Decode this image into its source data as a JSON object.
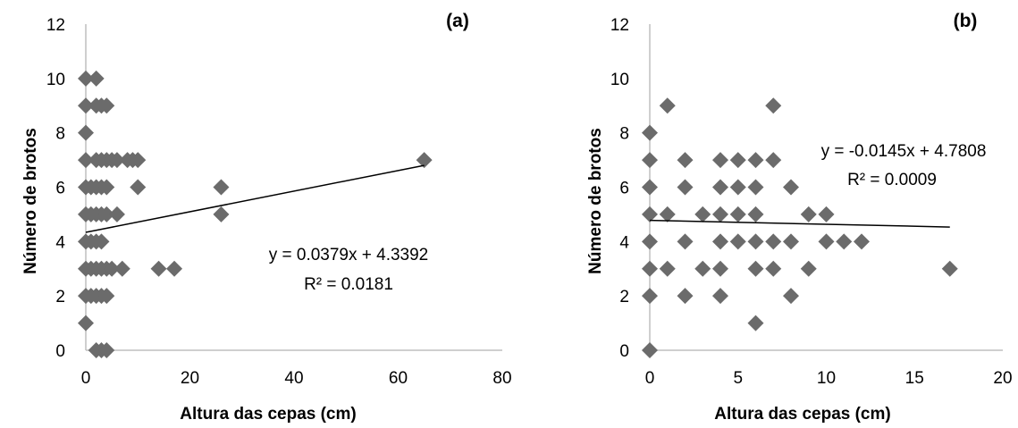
{
  "chart_data": [
    {
      "type": "scatter",
      "panel_label": "(a)",
      "xlabel": "Altura das cepas (cm)",
      "ylabel": "Número de brotos",
      "xlim": [
        0,
        80
      ],
      "ylim": [
        0,
        12
      ],
      "xticks": [
        0,
        20,
        40,
        60,
        80
      ],
      "yticks": [
        0,
        2,
        4,
        6,
        8,
        10,
        12
      ],
      "grid": false,
      "marker": "diamond",
      "marker_color": "#6b6b6b",
      "series": [
        {
          "points": [
            [
              0,
              10
            ],
            [
              0,
              9
            ],
            [
              0,
              8
            ],
            [
              0,
              7
            ],
            [
              0,
              6
            ],
            [
              0,
              5
            ],
            [
              0,
              4
            ],
            [
              0,
              3
            ],
            [
              0,
              2
            ],
            [
              0,
              1
            ],
            [
              2,
              10
            ],
            [
              2,
              9
            ],
            [
              2,
              7
            ],
            [
              2,
              6
            ],
            [
              2,
              5
            ],
            [
              2,
              4
            ],
            [
              2,
              3
            ],
            [
              2,
              2
            ],
            [
              2,
              0
            ],
            [
              1,
              6
            ],
            [
              1,
              5
            ],
            [
              1,
              4
            ],
            [
              1,
              3
            ],
            [
              1,
              2
            ],
            [
              3,
              9
            ],
            [
              3,
              7
            ],
            [
              3,
              6
            ],
            [
              3,
              5
            ],
            [
              3,
              4
            ],
            [
              3,
              3
            ],
            [
              3,
              2
            ],
            [
              3,
              0
            ],
            [
              4,
              9
            ],
            [
              4,
              7
            ],
            [
              4,
              6
            ],
            [
              4,
              5
            ],
            [
              4,
              3
            ],
            [
              4,
              2
            ],
            [
              4,
              0
            ],
            [
              5,
              7
            ],
            [
              5,
              3
            ],
            [
              6,
              7
            ],
            [
              6,
              5
            ],
            [
              7,
              3
            ],
            [
              8,
              7
            ],
            [
              9,
              7
            ],
            [
              10,
              7
            ],
            [
              10,
              6
            ],
            [
              14,
              3
            ],
            [
              17,
              3
            ],
            [
              26,
              6
            ],
            [
              26,
              5
            ],
            [
              65,
              7
            ]
          ]
        }
      ],
      "trendline": {
        "slope": 0.0379,
        "intercept": 4.3392,
        "x_range": [
          0,
          65
        ]
      },
      "equation_text": "y = 0.0379x + 4.3392",
      "r2_text": "R² = 0.0181"
    },
    {
      "type": "scatter",
      "panel_label": "(b)",
      "xlabel": "Altura das cepas (cm)",
      "ylabel": "Número de brotos",
      "xlim": [
        0,
        20
      ],
      "ylim": [
        0,
        12
      ],
      "xticks": [
        0,
        5,
        10,
        15,
        20
      ],
      "yticks": [
        0,
        2,
        4,
        6,
        8,
        10,
        12
      ],
      "grid": false,
      "marker": "diamond",
      "marker_color": "#6b6b6b",
      "series": [
        {
          "points": [
            [
              0,
              8
            ],
            [
              0,
              7
            ],
            [
              0,
              6
            ],
            [
              0,
              5
            ],
            [
              0,
              4
            ],
            [
              0,
              3
            ],
            [
              0,
              2
            ],
            [
              0,
              0
            ],
            [
              1,
              9
            ],
            [
              1,
              5
            ],
            [
              1,
              3
            ],
            [
              2,
              7
            ],
            [
              2,
              6
            ],
            [
              2,
              4
            ],
            [
              2,
              2
            ],
            [
              3,
              5
            ],
            [
              3,
              3
            ],
            [
              4,
              7
            ],
            [
              4,
              6
            ],
            [
              4,
              5
            ],
            [
              4,
              4
            ],
            [
              4,
              3
            ],
            [
              4,
              2
            ],
            [
              5,
              7
            ],
            [
              5,
              6
            ],
            [
              5,
              5
            ],
            [
              5,
              4
            ],
            [
              6,
              7
            ],
            [
              6,
              6
            ],
            [
              6,
              5
            ],
            [
              6,
              4
            ],
            [
              6,
              3
            ],
            [
              6,
              1
            ],
            [
              7,
              9
            ],
            [
              7,
              7
            ],
            [
              7,
              4
            ],
            [
              7,
              3
            ],
            [
              8,
              6
            ],
            [
              8,
              4
            ],
            [
              8,
              2
            ],
            [
              9,
              5
            ],
            [
              9,
              3
            ],
            [
              10,
              5
            ],
            [
              10,
              4
            ],
            [
              11,
              4
            ],
            [
              12,
              4
            ],
            [
              17,
              3
            ]
          ]
        }
      ],
      "trendline": {
        "slope": -0.0145,
        "intercept": 4.7808,
        "x_range": [
          0,
          17
        ]
      },
      "equation_text": "y = -0.0145x + 4.7808",
      "r2_text": "R² = 0.0009"
    }
  ]
}
